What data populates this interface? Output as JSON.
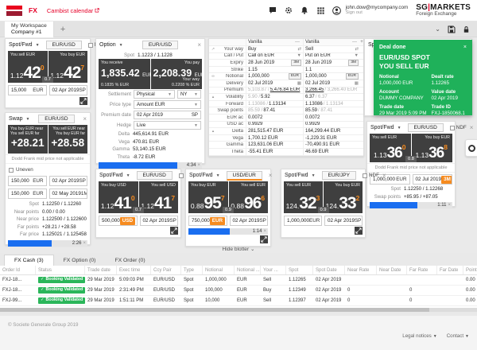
{
  "brand": {
    "app_label": "FX",
    "calendar_link": "Cambist calendar",
    "user_email": "john.dow@mycompany.com",
    "sign_out": "Sign out",
    "logo_main": "SG",
    "logo_sep": "|",
    "logo_market": "MARKETS",
    "logo_sub": "Foreign Exchange"
  },
  "workspace": {
    "tab_title": "My Workspace",
    "tab_subtitle": "Company #1",
    "add_tab": "+"
  },
  "colors": {
    "accent_red": "#e60028",
    "accent_orange": "#f68b1f",
    "deal_green": "#1fb15a",
    "status_green": "#2bb65a",
    "timer_blue": "#1a6ef0",
    "panel_dark": "#3f3f3f"
  },
  "tiles": {
    "spot_a": {
      "type_label": "Spot/Fwd",
      "pair": "EUR/USD",
      "ndf_label": "NDF",
      "left": {
        "label": "You sell EUR",
        "prefix": "1.12",
        "big": "42",
        "sup": "0"
      },
      "right": {
        "label": "You buy EUR",
        "prefix": "1.12",
        "big": "42",
        "sup": "7"
      },
      "spread": "0.7",
      "amount": "15,000",
      "ccy": "EUR",
      "date": "02 Apr 2019",
      "tenor": "SP"
    },
    "swap": {
      "type_label": "Swap",
      "pair": "EUR/USD",
      "left": {
        "label1": "You buy EUR near",
        "label2": "You sell EUR far",
        "value": "+28.21"
      },
      "right": {
        "label1": "You sell EUR near",
        "label2": "You buy EUR far",
        "value": "+28.58"
      },
      "note": "Dodd Frank mid price not applicable",
      "uneven_label": "Uneven",
      "legs": [
        {
          "amount": "150,000",
          "ccy": "EUR",
          "date": "02 Apr 2019",
          "tenor": "SP"
        },
        {
          "amount": "150,000",
          "ccy": "EUR",
          "date": "02 May 2019",
          "tenor": "1M"
        }
      ],
      "quotes": [
        {
          "label": "Spot",
          "value": "1.12250 / 1.12260"
        },
        {
          "label": "Near points",
          "value": "0.00 / 0.00"
        },
        {
          "label": "Near price",
          "value": "1.122500 / 1.122600"
        },
        {
          "label": "Far points",
          "value": "+28.21 / +28.58"
        },
        {
          "label": "Far price",
          "value": "1.125021 / 1.125458"
        }
      ],
      "timer": "2:26"
    },
    "option": {
      "type_label": "Option",
      "pair": "EUR/USD",
      "spot_label": "Spot",
      "spot_value": "1.1223 / 1.1228",
      "left": {
        "label": "You receive",
        "amount": "1,835.42",
        "ccy": "EUR",
        "pct": "0.1835 % EUR"
      },
      "right": {
        "label": "You pay",
        "amount": "2,208.39",
        "ccy": "EUR",
        "your_way": "Your way",
        "pct": "0.2208 % EUR"
      },
      "form": {
        "settlement_label": "Settlement",
        "settlement_v1": "Physical",
        "settlement_v2": "NY",
        "price_type_label": "Price type",
        "price_type_value": "Amount EUR",
        "premium_date_label": "Premium date",
        "premium_date_value": "02 Apr 2019",
        "premium_date_tenor": "SP",
        "hedge_label": "Hedge",
        "hedge_value": "Live"
      },
      "greeks": [
        {
          "label": "Delta",
          "value": "445,614.91 EUR"
        },
        {
          "label": "Vega",
          "value": "470.81 EUR"
        },
        {
          "label": "Gamma",
          "value": "53,140.15 EUR"
        },
        {
          "label": "Theta",
          "value": "-8.72 EUR"
        }
      ],
      "timer": "4:34"
    },
    "spot_b": {
      "type_label": "Spot/Fwd",
      "pair": "EUR/USD",
      "ndf_label": "NDF",
      "left": {
        "label": "You buy USD",
        "prefix": "1.12",
        "big": "41",
        "sup": "0"
      },
      "right": {
        "label": "You sell USD",
        "prefix": "1.12",
        "big": "41",
        "sup": "7"
      },
      "spread": "0.7",
      "amount": "500,000",
      "ccy": "USD",
      "date": "02 Apr 2019",
      "tenor": "SP"
    },
    "spot_c": {
      "type_label": "Spot/Fwd",
      "pair": "USD/EUR",
      "left": {
        "label": "You buy EUR",
        "prefix": "0.88",
        "big": "95",
        "sup": "7"
      },
      "right": {
        "label": "You sell EUR",
        "prefix": "0.88",
        "big": "96",
        "sup": "6"
      },
      "spread": "0.9",
      "amount": "750,000",
      "ccy": "EUR",
      "date": "02 Apr 2019",
      "tenor": "SP",
      "timer": "1:14"
    },
    "spot_d": {
      "type_label": "Spot/Fwd",
      "pair": "EUR/JPY",
      "ndf_label": "NDF",
      "left": {
        "label": "You sell EUR",
        "prefix": "124.",
        "big": "32",
        "sup": "3"
      },
      "right": {
        "label": "You buy EUR",
        "prefix": "124.",
        "big": "33",
        "sup": "2"
      },
      "spread": "0.9",
      "amount": "1,000,000",
      "ccy": "EUR",
      "date": "02 Apr 2019",
      "tenor": "SP"
    },
    "spot_r": {
      "type_label": "Spot/Fwd",
      "pair": "EUR/USD",
      "ndf_label": "NDF",
      "left": {
        "label": "You sell EUR",
        "prefix": "1.13",
        "big": "36",
        "sup": "0"
      },
      "right": {
        "label": "You buy EUR",
        "prefix": "1.13",
        "big": "36",
        "sup": "8"
      },
      "spread": "0.8",
      "note": "Dodd Frank mid price not applicable",
      "amount": "1,000,000",
      "ccy": "EUR",
      "date": "02 Jul 2019",
      "tenor": "3M",
      "quotes": [
        {
          "label": "Spot",
          "value": "1.12250 / 1.12268"
        },
        {
          "label": "Swap points",
          "value": "+85.95 / +87.05"
        }
      ],
      "timer": "1:11"
    },
    "ghost": {
      "type_label": "Spot/Fwd"
    }
  },
  "deal": {
    "title": "Deal done",
    "line1": "EUR/USD SPOT",
    "line2": "YOU SELL EUR",
    "fields": [
      {
        "label": "Notional",
        "value": "1,000,000 EUR"
      },
      {
        "label": "Dealt rate",
        "value": "1.12265"
      },
      {
        "label": "Account",
        "value": "DUMMY COMPANY"
      },
      {
        "label": "Value date",
        "value": "02 Apr 2019"
      },
      {
        "label": "Trade date",
        "value": "29 Mar 2019 5:09 PM"
      },
      {
        "label": "Trade ID",
        "value": "FXJ-1850068.1"
      }
    ]
  },
  "vanilla": {
    "title1": "Vanilla",
    "title2": "Vanilla",
    "minimize": "—",
    "add": "+",
    "rows": [
      {
        "icon": "expand",
        "label": "Your way",
        "c1": {
          "text": "Buy",
          "icon": "swap"
        },
        "c2": {
          "text": "Sell",
          "icon": "swap"
        }
      },
      {
        "label": "Call / Put",
        "c1": {
          "text": "Call on EUR",
          "icon": "caret"
        },
        "c2": {
          "text": "Put on EUR",
          "icon": "caret"
        }
      },
      {
        "label": "Expiry",
        "c1": {
          "text": "28 Jun 2019",
          "badge": "3M"
        },
        "c2": {
          "text": "28 Jun 2019",
          "badge": "3M"
        }
      },
      {
        "label": "Strike",
        "c1": {
          "text": "1.15"
        },
        "c2": {
          "text": "1.1"
        }
      },
      {
        "icon": "link",
        "label": "Notional",
        "c1": {
          "text": "1,000,000",
          "badge": "EUR"
        },
        "c2": {
          "text": "1,000,000",
          "badge": "EUR"
        }
      },
      {
        "label": "Delivery",
        "c1": {
          "text": "02 Jul 2019",
          "icon": "calendar"
        },
        "c2": {
          "text": "02 Jul 2019",
          "icon": "calendar"
        }
      },
      {
        "label": "Premium",
        "c1": {
          "pre": "5,103.87 / ",
          "text": "5,476.84 EUR",
          "u": true
        },
        "c2": {
          "text": "3,266.45",
          "post": " / 3,266.40 EUR",
          "u": true
        }
      },
      {
        "icon": "up",
        "label": "Volatility",
        "c1": {
          "pre": "5.90 / ",
          "text": "5.92"
        },
        "c2": {
          "text": "6.37",
          "post": " / 6.37"
        }
      },
      {
        "label": "Forward",
        "c1": {
          "pre": "1.13086 / ",
          "text": "1.13134"
        },
        "c2": {
          "text": "1.13086",
          "post": " / 1.13134"
        }
      },
      {
        "label": "Swap points",
        "c1": {
          "pre": "85.59 / ",
          "text": "87.41"
        },
        "c2": {
          "text": "85.59",
          "post": " / 87.41"
        }
      },
      {
        "label": "EUR ac",
        "c1": {
          "text": "0.0072"
        },
        "c2": {
          "text": "0.0072"
        }
      },
      {
        "label": "USD ac",
        "c1": {
          "text": "0.9929"
        },
        "c2": {
          "text": "0.9929"
        }
      },
      {
        "icon": "up",
        "label": "Delta",
        "c1": {
          "text": "281,515.47 EUR"
        },
        "c2": {
          "text": "164,299.44 EUR"
        }
      },
      {
        "label": "Vega",
        "c1": {
          "text": "1,700.12 EUR"
        },
        "c2": {
          "text": "-1,229.31 EUR"
        }
      },
      {
        "label": "Gamma",
        "c1": {
          "text": "123,631.06 EUR"
        },
        "c2": {
          "text": "-70,490.91 EUR"
        }
      },
      {
        "label": "Theta",
        "c1": {
          "text": "-55.41 EUR"
        },
        "c2": {
          "text": "46.69 EUR"
        }
      }
    ]
  },
  "blotter": {
    "hide_label": "Hide blotter ⌄",
    "tabs": [
      "FX Cash (3)",
      "FX Option (0)",
      "FX Order (0)"
    ],
    "columns": [
      "Order Id",
      "Status",
      "Trade date",
      "Exec time",
      "Ccy Pair",
      "Type",
      "Notional",
      "Notional ...",
      "Your ...",
      "Spot",
      "Spot Date",
      "Near Rate",
      "Near Date",
      "Far Rate",
      "Far Date",
      "Points",
      "Venue"
    ],
    "rows": [
      [
        "FXJ-18...",
        "Booking Validated",
        "29 Mar 2019",
        "5:09:03 PM",
        "EUR/USD",
        "Spot",
        "1,000,000",
        "EUR",
        "Sell",
        "1.12265",
        "02 Apr 2019",
        "",
        "",
        "",
        "",
        "0.00",
        ""
      ],
      [
        "FXJ-18...",
        "Booking Validated",
        "29 Mar 2019",
        "2:31:49 PM",
        "EUR/USD",
        "Spot",
        "100,000",
        "EUR",
        "Buy",
        "1.12349",
        "02 Apr 2019",
        "0",
        "",
        "0",
        "",
        "0.00",
        ""
      ],
      [
        "FXJ-99...",
        "Booking Validated",
        "29 Mar 2019",
        "1:51:11 PM",
        "EUR/USD",
        "Spot",
        "10,000",
        "EUR",
        "Sell",
        "1.12397",
        "02 Apr 2019",
        "0",
        "",
        "0",
        "",
        "0.00",
        ""
      ]
    ]
  },
  "footer": {
    "copyright": "© Societe Generale Group 2019",
    "legal": "Legal notices",
    "contact": "Contact"
  }
}
